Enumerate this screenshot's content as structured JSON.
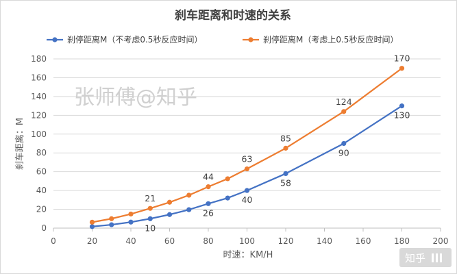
{
  "chart_data": {
    "type": "line",
    "title": "刹车距离和时速的关系",
    "xlabel": "时速：KM/H",
    "ylabel": "刹车距离：M",
    "xlim": [
      0,
      200
    ],
    "ylim": [
      0,
      180
    ],
    "x_ticks": [
      0,
      20,
      40,
      60,
      80,
      100,
      120,
      140,
      160,
      180,
      200
    ],
    "y_ticks": [
      0,
      20,
      40,
      60,
      80,
      100,
      120,
      140,
      160,
      180
    ],
    "grid": "horizontal",
    "legend_position": "top",
    "series": [
      {
        "name": "刹停距离M（不考虑0.5秒反应时间）",
        "color": "#4472c4",
        "x": [
          20,
          30,
          40,
          50,
          60,
          70,
          80,
          90,
          100,
          120,
          150,
          180
        ],
        "y": [
          1.6,
          3.6,
          6.4,
          10,
          14.4,
          19.6,
          26,
          32,
          40,
          58,
          90,
          130
        ],
        "labels": [
          {
            "x": 50,
            "text": "10"
          },
          {
            "x": 80,
            "text": "26"
          },
          {
            "x": 100,
            "text": "40"
          },
          {
            "x": 120,
            "text": "58"
          },
          {
            "x": 150,
            "text": "90"
          },
          {
            "x": 180,
            "text": "130"
          }
        ]
      },
      {
        "name": "刹停距离M（考虑上0.5秒反应时间）",
        "color": "#ed7d31",
        "x": [
          20,
          30,
          40,
          50,
          60,
          70,
          80,
          90,
          100,
          120,
          150,
          180
        ],
        "y": [
          6.3,
          10,
          15,
          21,
          27.5,
          35,
          44,
          52.5,
          63,
          85,
          124,
          170
        ],
        "labels": [
          {
            "x": 50,
            "text": "21"
          },
          {
            "x": 80,
            "text": "44"
          },
          {
            "x": 100,
            "text": "63"
          },
          {
            "x": 120,
            "text": "85"
          },
          {
            "x": 150,
            "text": "124"
          },
          {
            "x": 180,
            "text": "170"
          }
        ]
      }
    ]
  },
  "watermark": "张师傅@知乎",
  "logo": "知乎"
}
